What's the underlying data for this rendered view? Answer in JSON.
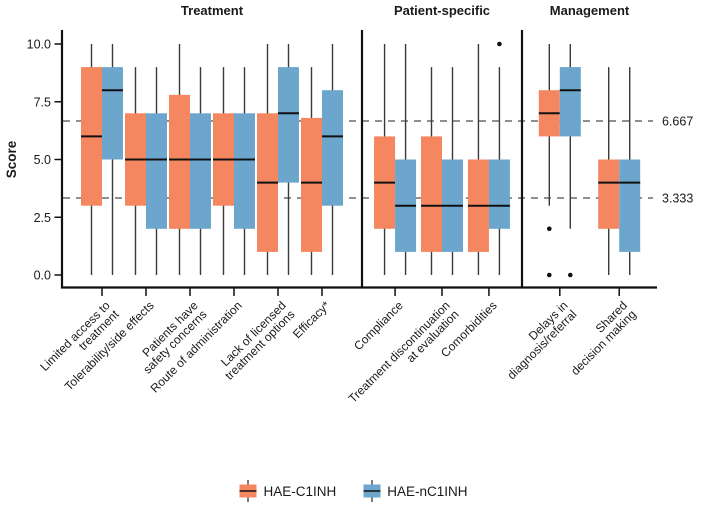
{
  "chart_data": {
    "type": "boxplot",
    "title": "",
    "ylabel": "Score",
    "ylim": [
      0,
      10
    ],
    "y_ticks": [
      0.0,
      2.5,
      5.0,
      7.5,
      10.0
    ],
    "y_tick_labels": [
      "0.0",
      "2.5",
      "5.0",
      "7.5",
      "10.0"
    ],
    "grid": false,
    "legend_position": "bottom",
    "box_stats_format": [
      "whisker_low",
      "q1",
      "median",
      "q3",
      "whisker_high"
    ],
    "reference_lines": [
      {
        "value": 6.667,
        "label": "6.667"
      },
      {
        "value": 3.333,
        "label": "3.333"
      }
    ],
    "series": [
      {
        "name": "HAE-C1INH",
        "color": "#F4875F"
      },
      {
        "name": "HAE-nC1INH",
        "color": "#6CA6CD"
      }
    ],
    "facets": [
      {
        "label": "Treatment",
        "categories": [
          {
            "label_lines": [
              "Limited access to",
              "treatment"
            ],
            "boxes": [
              {
                "series": "HAE-C1INH",
                "stats": [
                  0,
                  3,
                  6,
                  9,
                  10
                ],
                "outliers": []
              },
              {
                "series": "HAE-nC1INH",
                "stats": [
                  0,
                  5,
                  8,
                  9,
                  10
                ],
                "outliers": []
              }
            ]
          },
          {
            "label_lines": [
              "Tolerability/side effects"
            ],
            "boxes": [
              {
                "series": "HAE-C1INH",
                "stats": [
                  0,
                  3,
                  5,
                  7,
                  9
                ],
                "outliers": []
              },
              {
                "series": "HAE-nC1INH",
                "stats": [
                  0,
                  2,
                  5,
                  7,
                  9
                ],
                "outliers": []
              }
            ]
          },
          {
            "label_lines": [
              "Patients have",
              "safety concerns"
            ],
            "boxes": [
              {
                "series": "HAE-C1INH",
                "stats": [
                  0,
                  2,
                  5,
                  7.8,
                  10
                ],
                "outliers": []
              },
              {
                "series": "HAE-nC1INH",
                "stats": [
                  0,
                  2,
                  5,
                  7,
                  9
                ],
                "outliers": []
              }
            ]
          },
          {
            "label_lines": [
              "Route of administration"
            ],
            "boxes": [
              {
                "series": "HAE-C1INH",
                "stats": [
                  0,
                  3,
                  5,
                  7,
                  9
                ],
                "outliers": []
              },
              {
                "series": "HAE-nC1INH",
                "stats": [
                  0,
                  2,
                  5,
                  7,
                  9
                ],
                "outliers": []
              }
            ]
          },
          {
            "label_lines": [
              "Lack of licensed",
              "treatment options"
            ],
            "boxes": [
              {
                "series": "HAE-C1INH",
                "stats": [
                  0,
                  1,
                  4,
                  7,
                  10
                ],
                "outliers": []
              },
              {
                "series": "HAE-nC1INH",
                "stats": [
                  0,
                  4,
                  7,
                  9,
                  10
                ],
                "outliers": []
              }
            ]
          },
          {
            "label_lines": [
              "Efficacy*"
            ],
            "boxes": [
              {
                "series": "HAE-C1INH",
                "stats": [
                  0,
                  1,
                  4,
                  6.8,
                  9
                ],
                "outliers": []
              },
              {
                "series": "HAE-nC1INH",
                "stats": [
                  0,
                  3,
                  6,
                  8,
                  10
                ],
                "outliers": []
              }
            ]
          }
        ]
      },
      {
        "label": "Patient-specific",
        "categories": [
          {
            "label_lines": [
              "Compliance"
            ],
            "boxes": [
              {
                "series": "HAE-C1INH",
                "stats": [
                  0,
                  2,
                  4,
                  6,
                  10
                ],
                "outliers": []
              },
              {
                "series": "HAE-nC1INH",
                "stats": [
                  0,
                  1,
                  3,
                  5,
                  10
                ],
                "outliers": []
              }
            ]
          },
          {
            "label_lines": [
              "Treatment discontinuation",
              "at evaluation"
            ],
            "boxes": [
              {
                "series": "HAE-C1INH",
                "stats": [
                  0,
                  1,
                  3,
                  6,
                  9
                ],
                "outliers": []
              },
              {
                "series": "HAE-nC1INH",
                "stats": [
                  0,
                  1,
                  3,
                  5,
                  9
                ],
                "outliers": []
              }
            ]
          },
          {
            "label_lines": [
              "Comorbidities"
            ],
            "boxes": [
              {
                "series": "HAE-C1INH",
                "stats": [
                  0,
                  1,
                  3,
                  5,
                  10
                ],
                "outliers": []
              },
              {
                "series": "HAE-nC1INH",
                "stats": [
                  0,
                  2,
                  3,
                  5,
                  9
                ],
                "outliers": [
                  10
                ]
              }
            ]
          }
        ]
      },
      {
        "label": "Management",
        "categories": [
          {
            "label_lines": [
              "Delays in",
              "diagnosis/referral"
            ],
            "boxes": [
              {
                "series": "HAE-C1INH",
                "stats": [
                  3,
                  6,
                  7,
                  8,
                  10
                ],
                "outliers": [
                  2,
                  0
                ]
              },
              {
                "series": "HAE-nC1INH",
                "stats": [
                  2,
                  6,
                  8,
                  9,
                  10
                ],
                "outliers": [
                  0
                ]
              }
            ]
          },
          {
            "label_lines": [
              "Shared",
              "decision making"
            ],
            "boxes": [
              {
                "series": "HAE-C1INH",
                "stats": [
                  0,
                  2,
                  4,
                  5,
                  9
                ],
                "outliers": []
              },
              {
                "series": "HAE-nC1INH",
                "stats": [
                  0,
                  1,
                  4,
                  5,
                  9
                ],
                "outliers": []
              }
            ]
          }
        ]
      }
    ]
  },
  "style_colors": {
    "axis": "#111111",
    "whisker": "#3a3a3a",
    "median": "#111111",
    "ref_line": "#4d4d4d",
    "text": "#1a1a1a"
  }
}
